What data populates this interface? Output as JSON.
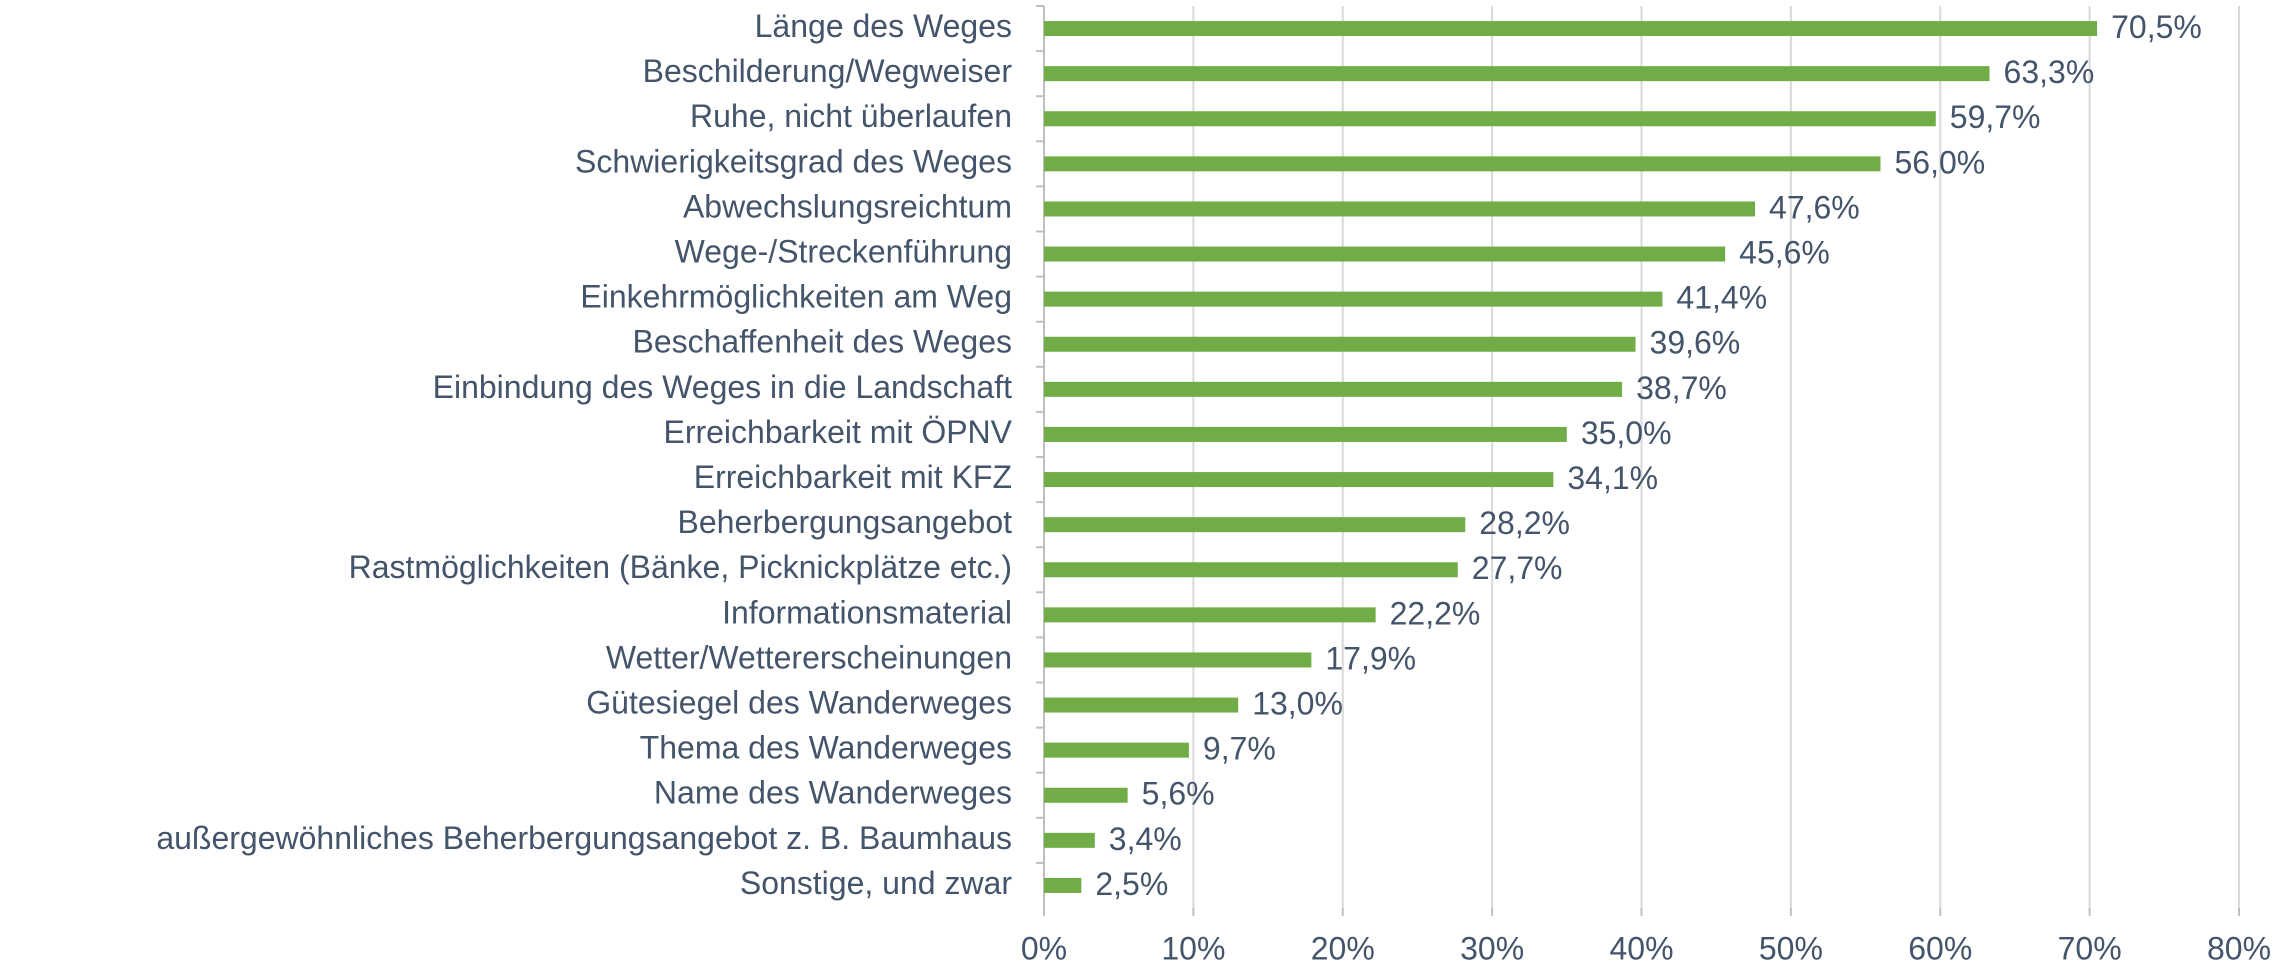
{
  "chart_data": {
    "type": "bar",
    "orientation": "horizontal",
    "categories": [
      "Länge des Weges",
      "Beschilderung/Wegweiser",
      "Ruhe, nicht überlaufen",
      "Schwierigkeitsgrad des Weges",
      "Abwechslungsreichtum",
      "Wege-/Streckenführung",
      "Einkehrmöglichkeiten am Weg",
      "Beschaffenheit des Weges",
      "Einbindung des Weges in die Landschaft",
      "Erreichbarkeit mit ÖPNV",
      "Erreichbarkeit mit KFZ",
      "Beherbergungsangebot",
      "Rastmöglichkeiten (Bänke, Picknickplätze etc.)",
      "Informationsmaterial",
      "Wetter/Wettererscheinungen",
      "Gütesiegel des Wanderweges",
      "Thema des Wanderweges",
      "Name des Wanderweges",
      "außergewöhnliches Beherbergungsangebot z. B. Baumhaus",
      "Sonstige, und zwar"
    ],
    "values": [
      70.5,
      63.3,
      59.7,
      56.0,
      47.6,
      45.6,
      41.4,
      39.6,
      38.7,
      35.0,
      34.1,
      28.2,
      27.7,
      22.2,
      17.9,
      13.0,
      9.7,
      5.6,
      3.4,
      2.5
    ],
    "value_labels": [
      "70,5%",
      "63,3%",
      "59,7%",
      "56,0%",
      "47,6%",
      "45,6%",
      "41,4%",
      "39,6%",
      "38,7%",
      "35,0%",
      "34,1%",
      "28,2%",
      "27,7%",
      "22,2%",
      "17,9%",
      "13,0%",
      "9,7%",
      "5,6%",
      "3,4%",
      "2,5%"
    ],
    "color": "#70ad47",
    "xlim": [
      0,
      80
    ],
    "xticks": [
      {
        "value": 0,
        "label": "0%"
      },
      {
        "value": 10,
        "label": "10%"
      },
      {
        "value": 20,
        "label": "20%"
      },
      {
        "value": 30,
        "label": "30%"
      },
      {
        "value": 40,
        "label": "40%"
      },
      {
        "value": 50,
        "label": "50%"
      },
      {
        "value": 60,
        "label": "60%"
      },
      {
        "value": 70,
        "label": "70%"
      },
      {
        "value": 80,
        "label": "80%"
      }
    ],
    "grid": true
  }
}
